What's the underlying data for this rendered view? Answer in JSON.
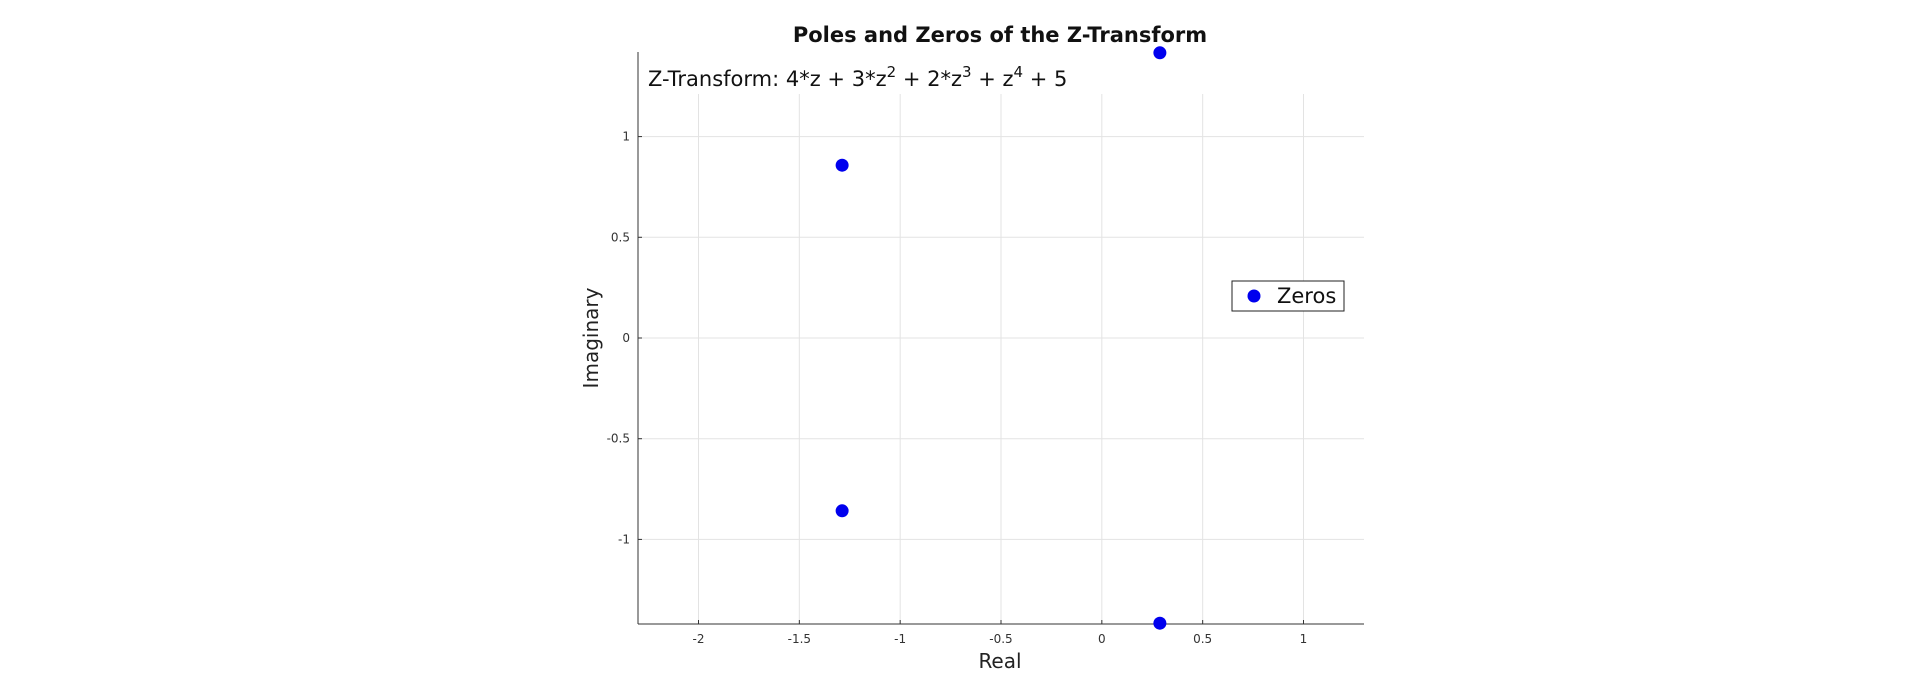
{
  "chart_data": {
    "type": "scatter",
    "title": "Poles and Zeros of the Z-Transform",
    "xlabel": "Real",
    "ylabel": "Imaginary",
    "xlim": [
      -2.3,
      1.3
    ],
    "ylim": [
      -1.42,
      1.42
    ],
    "xticks": [
      -2,
      -1.5,
      -1,
      -0.5,
      0,
      0.5,
      1
    ],
    "xtick_labels": [
      "-2",
      "-1.5",
      "-1",
      "-0.5",
      "0",
      "0.5",
      "1"
    ],
    "yticks": [
      -1,
      -0.5,
      0,
      0.5,
      1
    ],
    "ytick_labels": [
      "-1",
      "-0.5",
      "0",
      "0.5",
      "1"
    ],
    "grid": true,
    "annotation": {
      "parts": [
        {
          "text": "Z-Transform: 4*z + 3*z",
          "sup": false
        },
        {
          "text": "2",
          "sup": true
        },
        {
          "text": " + 2*z",
          "sup": false
        },
        {
          "text": "3",
          "sup": true
        },
        {
          "text": " + z",
          "sup": false
        },
        {
          "text": "4",
          "sup": true
        },
        {
          "text": " + 5",
          "sup": false
        }
      ]
    },
    "legend": {
      "position": "right",
      "entries": [
        "Zeros"
      ]
    },
    "series": [
      {
        "name": "Zeros",
        "color": "#0000ee",
        "points": [
          {
            "x": 0.2878,
            "y": 1.4161
          },
          {
            "x": 0.2878,
            "y": -1.4161
          },
          {
            "x": -1.2878,
            "y": 0.8579
          },
          {
            "x": -1.2878,
            "y": -0.8579
          }
        ]
      }
    ]
  }
}
